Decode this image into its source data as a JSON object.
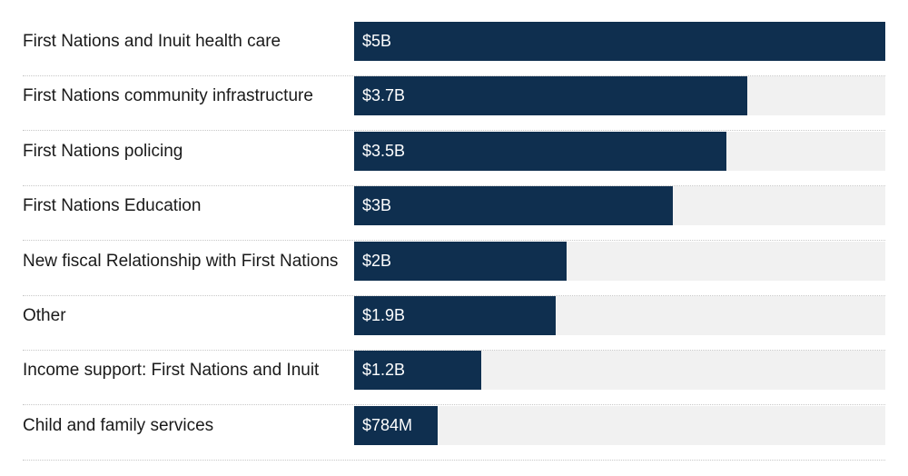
{
  "chart_data": {
    "type": "bar",
    "orientation": "horizontal",
    "unit": "billion CAD",
    "xlim": [
      0,
      5
    ],
    "categories": [
      "First Nations and Inuit health care",
      "First Nations community infrastructure",
      "First Nations policing",
      "First Nations Education",
      "New fiscal Relationship with First Nations",
      "Other",
      "Income support: First Nations and Inuit",
      "Child and family services"
    ],
    "values": [
      5,
      3.7,
      3.5,
      3,
      2,
      1.9,
      1.2,
      0.784
    ],
    "value_labels": [
      "$5B",
      "$3.7B",
      "$3.5B",
      "$3B",
      "$2B",
      "$1.9B",
      "$1.2B",
      "$784M"
    ],
    "colors": {
      "bar": "#0f2f4f",
      "track": "#f1f1f1",
      "label_text": "#1a1a1a",
      "value_text": "#ffffff"
    }
  }
}
